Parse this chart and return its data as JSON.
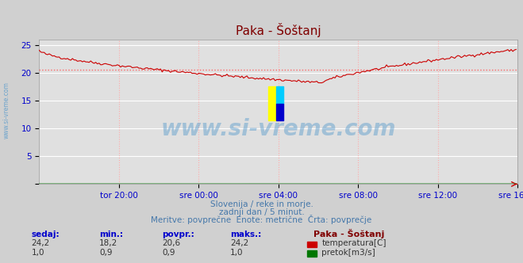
{
  "title": "Paka - Šoštanj",
  "title_color": "#800000",
  "bg_color": "#d0d0d0",
  "plot_bg_color": "#e0e0e0",
  "xlabel_ticks": [
    "tor 20:00",
    "sre 00:00",
    "sre 04:00",
    "sre 08:00",
    "sre 12:00",
    "sre 16:00"
  ],
  "ylabel_ticks": [
    0,
    5,
    10,
    15,
    20,
    25
  ],
  "ylim": [
    0,
    26
  ],
  "xlim": [
    0,
    288
  ],
  "temp_color": "#cc0000",
  "flow_color": "#007700",
  "avg_line_color": "#ff6666",
  "avg_value": 20.6,
  "subtitle1": "Slovenija / reke in morje.",
  "subtitle2": "zadnji dan / 5 minut.",
  "subtitle3": "Meritve: povprečne  Enote: metrične  Črta: povprečje",
  "legend_title": "Paka - Šoštanj",
  "watermark": "www.si-vreme.com",
  "sidebar_text": "www.si-vreme.com",
  "table_headers": [
    "sedaj:",
    "min.:",
    "povpr.:",
    "maks.:"
  ],
  "temp_row": [
    "24,2",
    "18,2",
    "20,6",
    "24,2"
  ],
  "flow_row": [
    "1,0",
    "0,9",
    "0,9",
    "1,0"
  ],
  "temp_label": "temperatura[C]",
  "flow_label": "pretok[m3/s]"
}
